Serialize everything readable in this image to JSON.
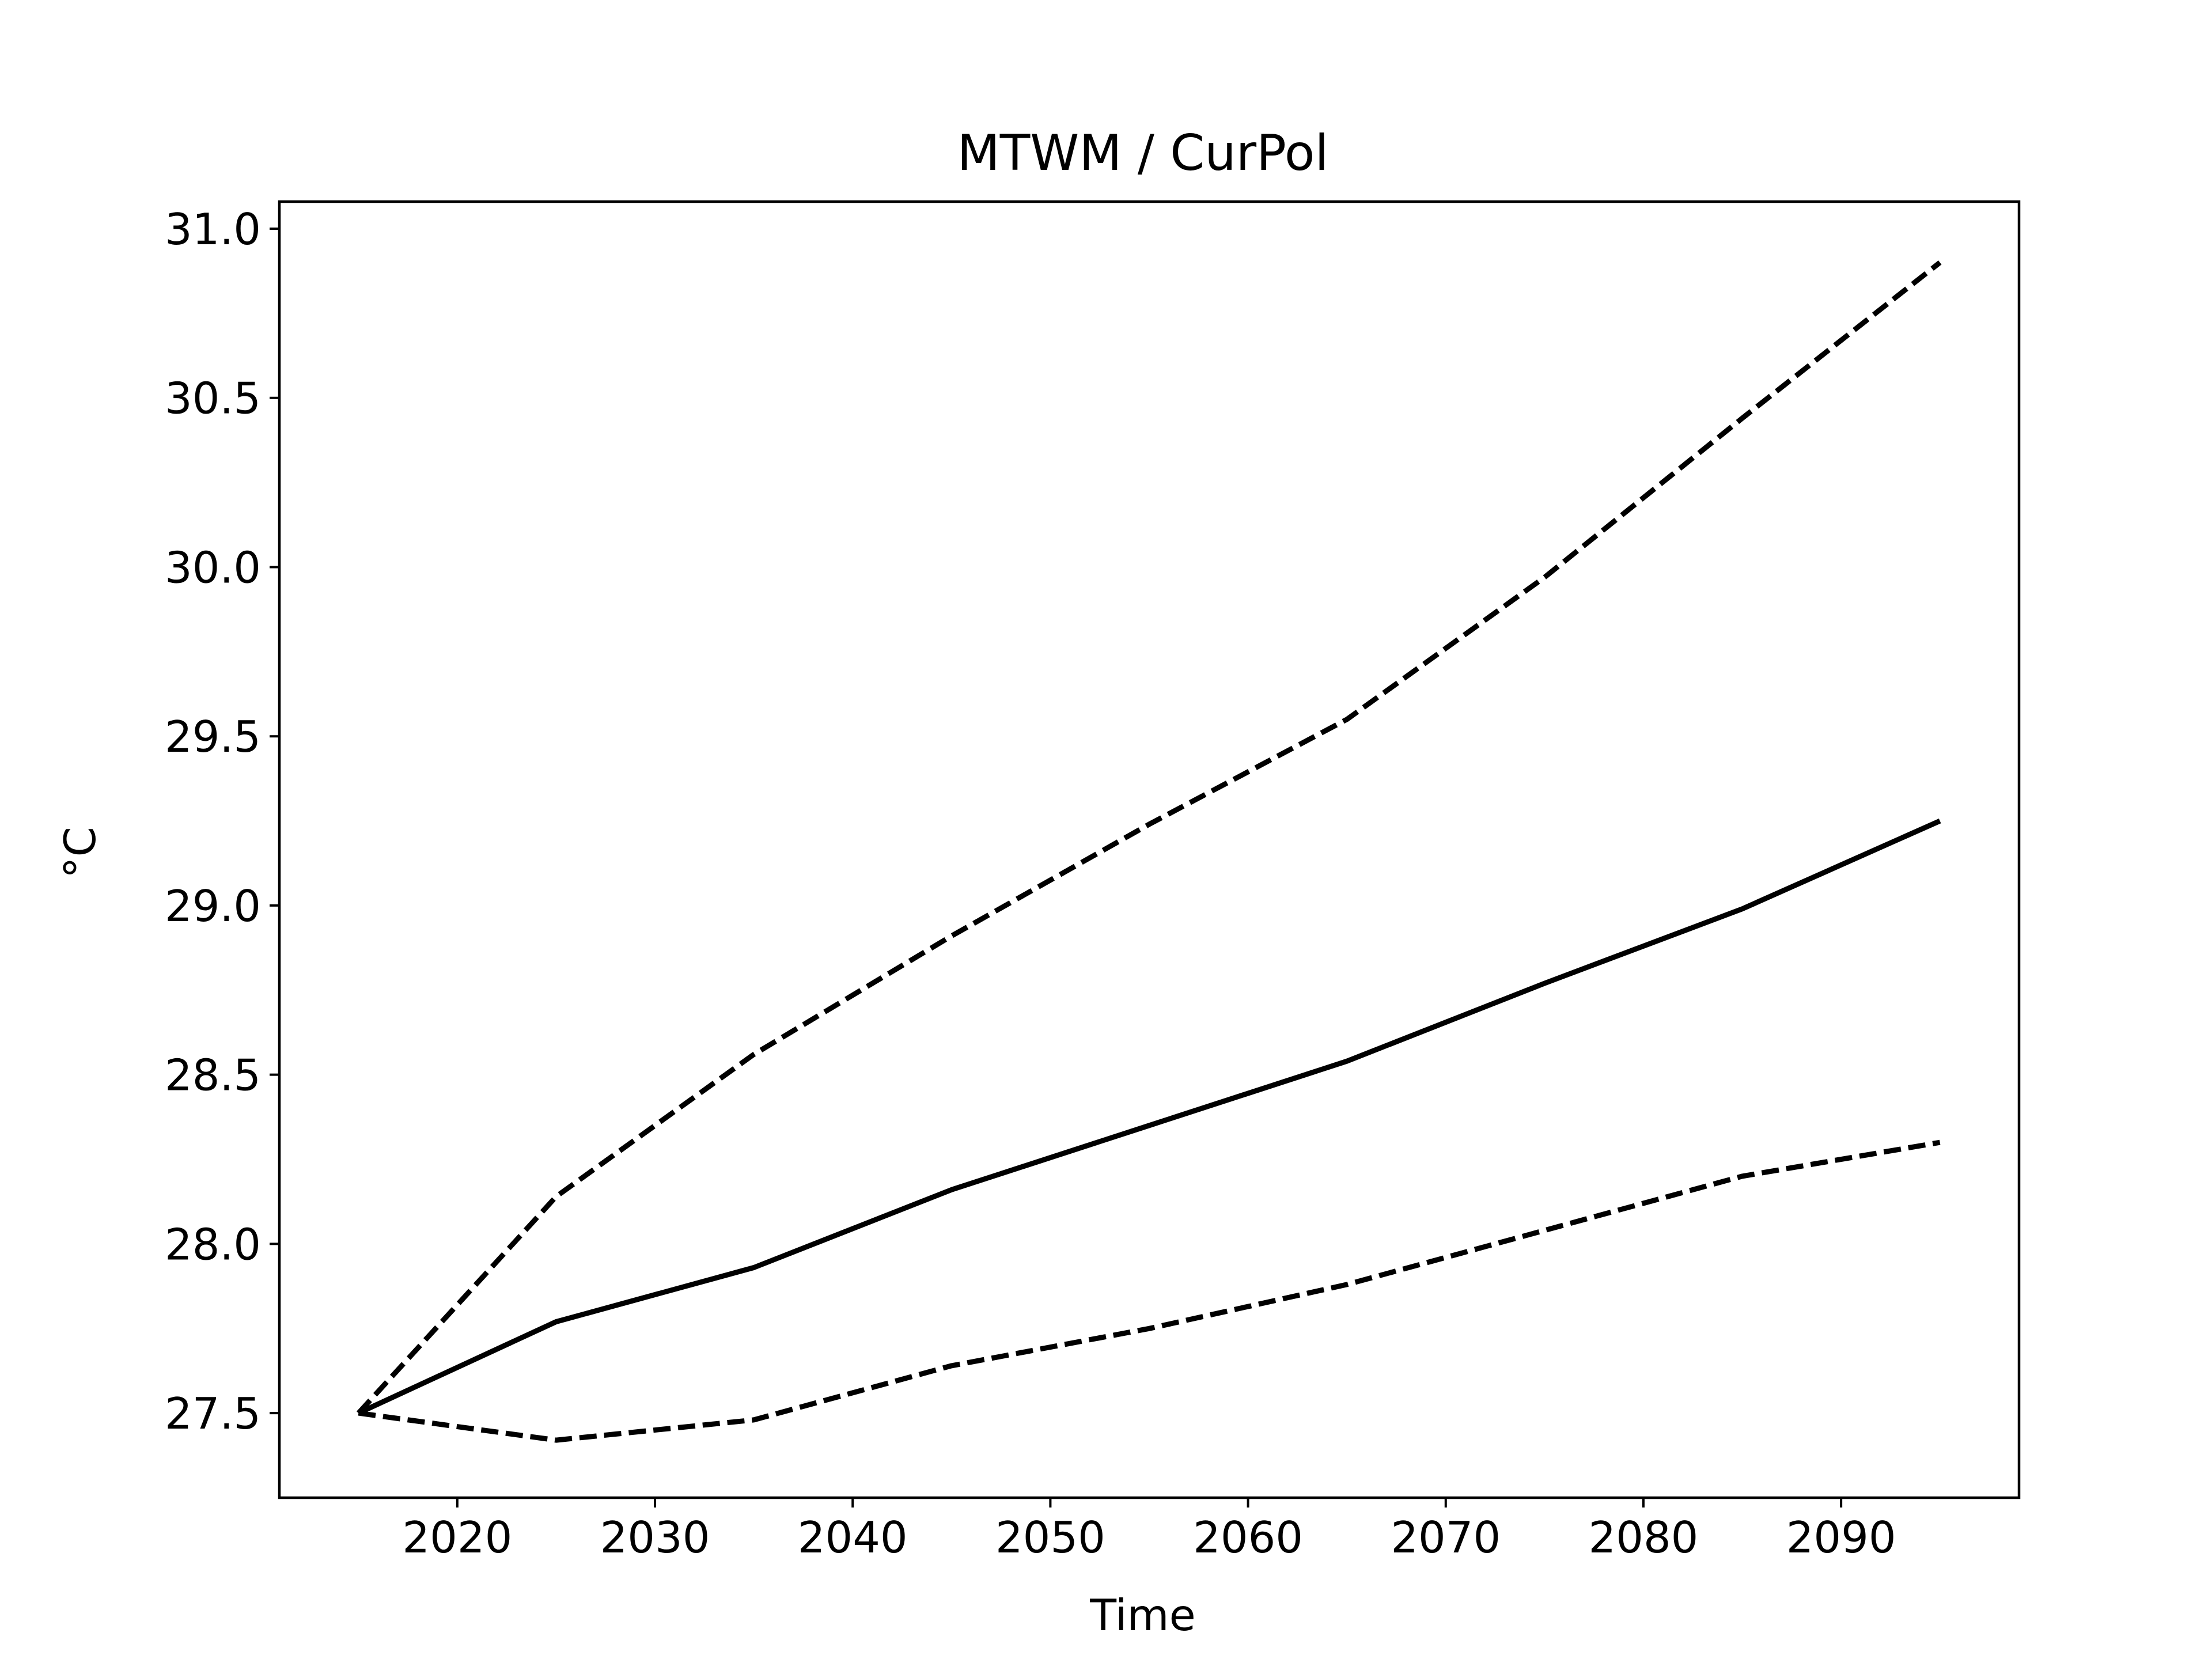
{
  "chart_data": {
    "type": "line",
    "title": "MTWM / CurPol",
    "xlabel": "Time",
    "ylabel": "°C",
    "xlim": [
      2011,
      2099
    ],
    "ylim": [
      27.25,
      31.08
    ],
    "x_ticks": [
      2020,
      2030,
      2040,
      2050,
      2060,
      2070,
      2080,
      2090
    ],
    "y_ticks": [
      27.5,
      28.0,
      28.5,
      29.0,
      29.5,
      30.0,
      30.5,
      31.0
    ],
    "x_tick_labels": [
      "2020",
      "2030",
      "2040",
      "2050",
      "2060",
      "2070",
      "2080",
      "2090"
    ],
    "y_tick_labels": [
      "27.5",
      "28.0",
      "28.5",
      "29.0",
      "29.5",
      "30.0",
      "30.5",
      "31.0"
    ],
    "grid": false,
    "x": [
      2015,
      2025,
      2035,
      2045,
      2055,
      2065,
      2075,
      2085,
      2095
    ],
    "series": [
      {
        "style": "solid",
        "color": "#000000",
        "values": [
          27.5,
          27.77,
          27.93,
          28.16,
          28.35,
          28.54,
          28.77,
          28.99,
          29.25
        ]
      },
      {
        "style": "dashed",
        "color": "#000000",
        "values": [
          27.5,
          28.14,
          28.56,
          28.91,
          29.24,
          29.55,
          29.97,
          30.44,
          30.9
        ]
      },
      {
        "style": "dashed",
        "color": "#000000",
        "values": [
          27.5,
          27.42,
          27.48,
          27.64,
          27.75,
          27.88,
          28.04,
          28.2,
          28.3
        ]
      }
    ]
  }
}
